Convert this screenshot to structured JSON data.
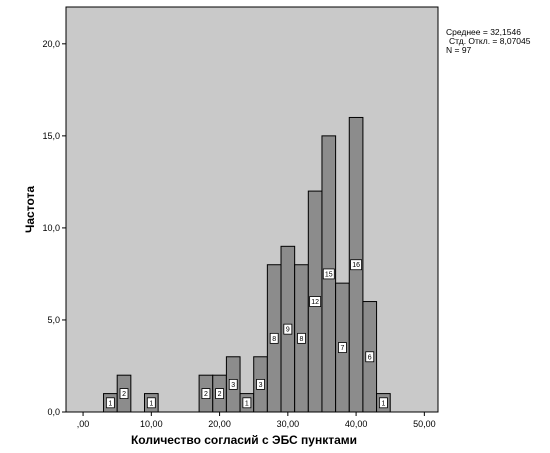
{
  "chart_data": {
    "type": "bar",
    "ylabel": "Частота",
    "xlabel": "Количество согласий с ЭБС пунктами",
    "xlim": [
      -2.5,
      52.0
    ],
    "ylim": [
      0,
      22.0
    ],
    "x_ticks": [
      ",00",
      "10,00",
      "20,00",
      "30,00",
      "40,00",
      "50,00"
    ],
    "x_tick_values": [
      0,
      10,
      20,
      30,
      40,
      50
    ],
    "y_ticks": [
      "0,0",
      "5,0",
      "10,0",
      "15,0",
      "20,0"
    ],
    "y_tick_values": [
      0,
      5,
      10,
      15,
      20
    ],
    "bin_width": 2,
    "bins": [
      {
        "start": 3.0,
        "count": 1,
        "label": "1"
      },
      {
        "start": 5.0,
        "count": 2,
        "label": "2"
      },
      {
        "start": 9.0,
        "count": 1,
        "label": "1"
      },
      {
        "start": 17.0,
        "count": 2,
        "label": "2"
      },
      {
        "start": 19.0,
        "count": 2,
        "label": "2"
      },
      {
        "start": 21.0,
        "count": 3,
        "label": "3"
      },
      {
        "start": 23.0,
        "count": 1,
        "label": "1"
      },
      {
        "start": 25.0,
        "count": 3,
        "label": "3"
      },
      {
        "start": 27.0,
        "count": 8,
        "label": "8"
      },
      {
        "start": 29.0,
        "count": 9,
        "label": "9"
      },
      {
        "start": 31.0,
        "count": 8,
        "label": "8"
      },
      {
        "start": 33.0,
        "count": 12,
        "label": "12"
      },
      {
        "start": 35.0,
        "count": 15,
        "label": "15"
      },
      {
        "start": 37.0,
        "count": 7,
        "label": "7"
      },
      {
        "start": 39.0,
        "count": 16,
        "label": "16"
      },
      {
        "start": 41.0,
        "count": 6,
        "label": "6"
      },
      {
        "start": 43.0,
        "count": 1,
        "label": "1"
      }
    ],
    "stats": {
      "mean": "Среднее = 32,1546",
      "std": "Стд. Откл. = 8,07045",
      "n": "N = 97"
    },
    "plot_background": "#c9c9c9",
    "bar_color": "#8c8c8c",
    "grid": false
  }
}
